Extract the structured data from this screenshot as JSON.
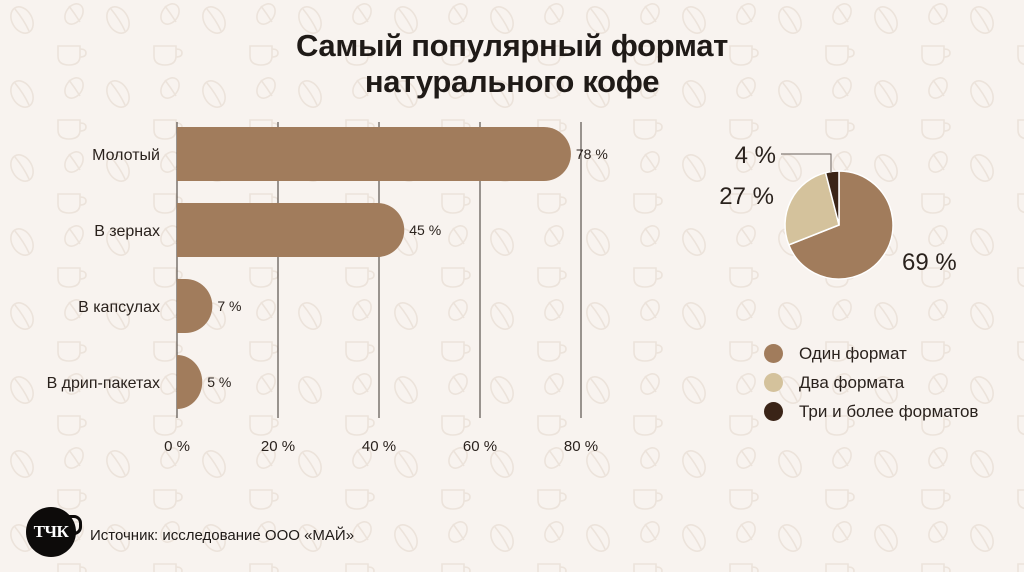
{
  "title_lines": [
    "Самый популярный формат",
    "натурального кофе"
  ],
  "colors": {
    "background": "#f8f3ef",
    "bar": "#a17c5c",
    "one_format": "#a17c5c",
    "two_formats": "#d4c29c",
    "three_formats": "#3a2417",
    "text": "#1f1a17",
    "gridline": "#3a332e"
  },
  "chart_data": [
    {
      "type": "bar",
      "orientation": "horizontal",
      "categories": [
        "Молотый",
        "В зернах",
        "В капсулах",
        "В дрип-пакетах"
      ],
      "values": [
        78,
        45,
        7,
        5
      ],
      "value_labels": [
        "78 %",
        "45 %",
        "7 %",
        "5 %"
      ],
      "xlim": [
        0,
        80
      ],
      "xticks": [
        0,
        20,
        40,
        60,
        80
      ],
      "xtick_labels": [
        "0 %",
        "20 %",
        "40 %",
        "60 %",
        "80 %"
      ],
      "grid": true
    },
    {
      "type": "pie",
      "labels": [
        "Один формат",
        "Два формата",
        "Три и более форматов"
      ],
      "values": [
        69,
        27,
        4
      ],
      "value_labels": [
        "69 %",
        "27 %",
        "4 %"
      ],
      "legend_position": "bottom-right"
    }
  ],
  "footer": {
    "logo_text": "ТЧК",
    "source": "Источник: исследование ООО «МАЙ»"
  }
}
